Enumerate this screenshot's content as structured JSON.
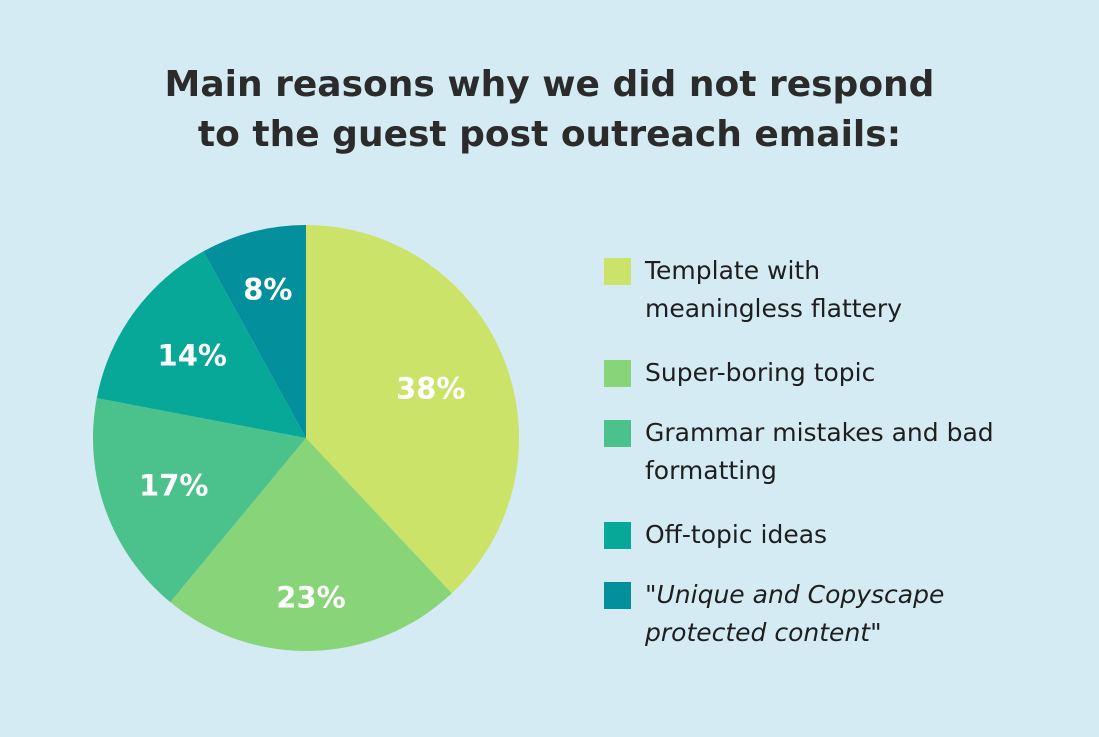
{
  "chart_data": {
    "type": "pie",
    "title": "Main reasons why we did not respond to the guest post outreach emails:",
    "title_lines": [
      "Main reasons why we did not respond",
      "to the guest post outreach emails:"
    ],
    "start": "top",
    "direction": "clockwise",
    "legend_position": "right",
    "slices": [
      {
        "label": "Template with meaningless flattery",
        "value": 38,
        "data_label": "38%",
        "color": "#cbe369"
      },
      {
        "label": "Super-boring topic",
        "value": 23,
        "data_label": "23%",
        "color": "#88d479"
      },
      {
        "label": "Grammar mistakes and bad formatting",
        "value": 17,
        "data_label": "17%",
        "color": "#4bc18c"
      },
      {
        "label": "Off-topic ideas",
        "value": 14,
        "data_label": "14%",
        "color": "#08a899"
      },
      {
        "label": "\"Unique and Copyscape protected content\"",
        "value": 8,
        "data_label": "8%",
        "color": "#038f9b",
        "italic": true
      }
    ]
  },
  "background": "#d5ebf3"
}
